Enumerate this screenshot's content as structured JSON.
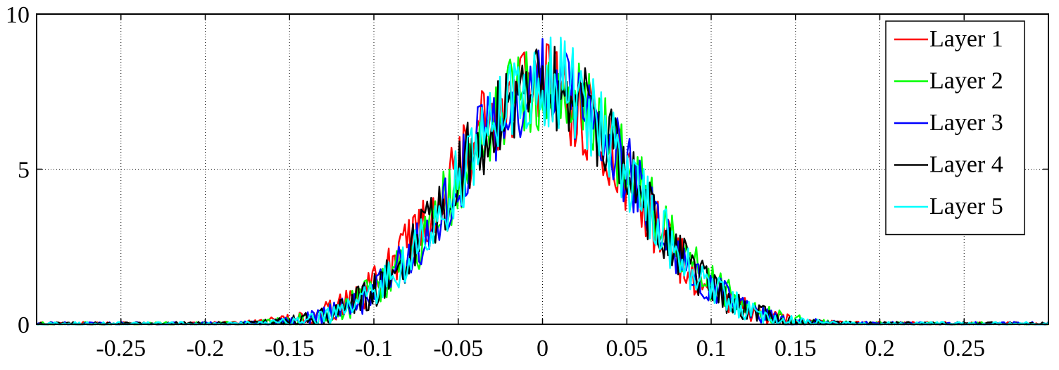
{
  "chart_data": {
    "type": "line",
    "title": "",
    "xlabel": "",
    "ylabel": "",
    "xlim": [
      -0.3,
      0.3
    ],
    "ylim": [
      0,
      10
    ],
    "xticks": [
      -0.25,
      -0.2,
      -0.15,
      -0.1,
      -0.05,
      0,
      0.05,
      0.1,
      0.15,
      0.2,
      0.25
    ],
    "xtick_labels": [
      "-0.25",
      "-0.2",
      "-0.15",
      "-0.1",
      "-0.05",
      "0",
      "0.05",
      "0.1",
      "0.15",
      "0.2",
      "0.25"
    ],
    "yticks": [
      0,
      5,
      10
    ],
    "ytick_labels": [
      "0",
      "5",
      "10"
    ],
    "grid": true,
    "legend_position": "top-right",
    "series": [
      {
        "name": "Layer 1",
        "color": "#ff0000",
        "mean": -0.002,
        "sigma": 0.052,
        "peak": 7.7
      },
      {
        "name": "Layer 2",
        "color": "#00ff00",
        "mean": 0.003,
        "sigma": 0.052,
        "peak": 7.8
      },
      {
        "name": "Layer 3",
        "color": "#0000ff",
        "mean": 0.002,
        "sigma": 0.051,
        "peak": 7.8
      },
      {
        "name": "Layer 4",
        "color": "#000000",
        "mean": 0.001,
        "sigma": 0.051,
        "peak": 7.8
      },
      {
        "name": "Layer 5",
        "color": "#00ffff",
        "mean": 0.002,
        "sigma": 0.05,
        "peak": 7.9
      }
    ]
  }
}
